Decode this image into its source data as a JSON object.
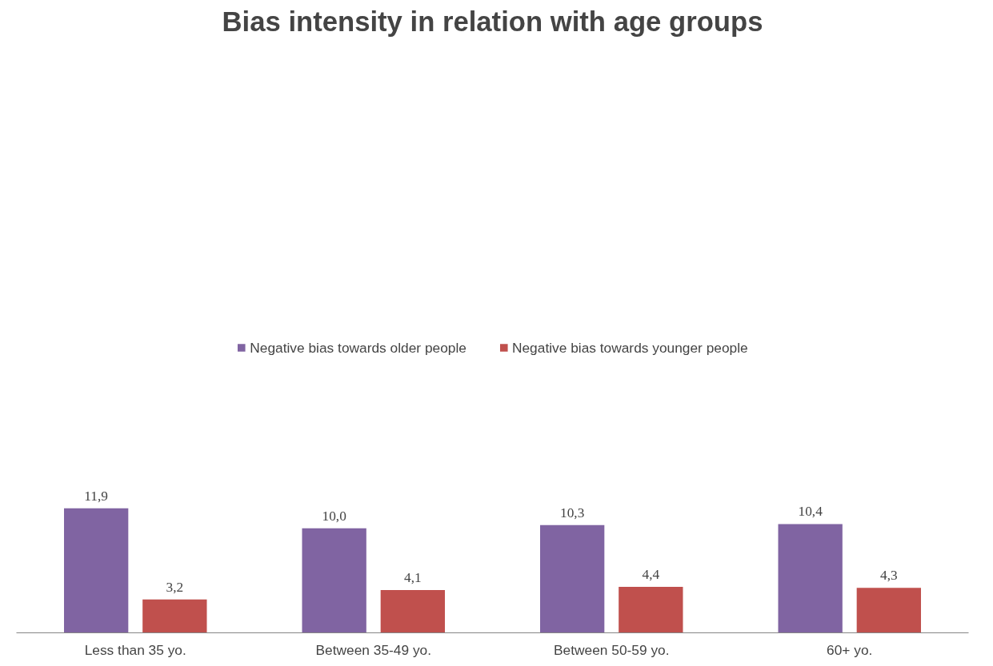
{
  "chart_data": {
    "type": "bar",
    "title": "Bias intensity in relation with age groups",
    "categories": [
      "Less than 35 yo.",
      "Between 35-49 yo.",
      "Between 50-59 yo.",
      "60+ yo."
    ],
    "series": [
      {
        "name": "Negative bias towards older people",
        "color": "#8064a2",
        "values": [
          11.9,
          10.0,
          10.3,
          10.4
        ],
        "value_labels": [
          "11,9",
          "10,0",
          "10,3",
          "10,4"
        ]
      },
      {
        "name": "Negative bias towards younger people",
        "color": "#c0504d",
        "values": [
          3.2,
          4.1,
          4.4,
          4.3
        ],
        "value_labels": [
          "3,2",
          "4,1",
          "4,4",
          "4,3"
        ]
      }
    ],
    "data_labels": true,
    "legend": "top",
    "grid": false
  }
}
